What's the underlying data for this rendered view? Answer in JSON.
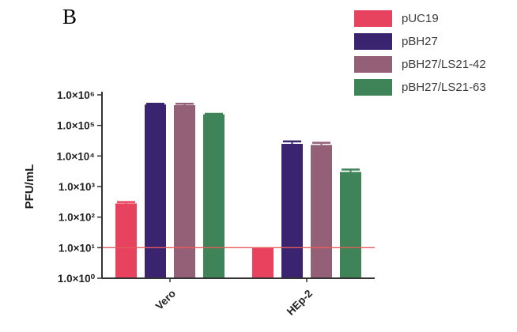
{
  "panel_label": "B",
  "colors": {
    "pUC19": "#e8435e",
    "pBH27": "#3a2470",
    "pBH27/LS21-42": "#946078",
    "pBH27/LS21-63": "#3e8458",
    "reference_line": "#e65a5a",
    "axis": "#333333"
  },
  "chart_data": {
    "type": "bar",
    "scale": "log10",
    "ylabel": "PFU/mL",
    "xlabel": "",
    "ylim": [
      1,
      1000000
    ],
    "yticks": [
      1,
      10,
      100,
      1000,
      10000,
      100000,
      1000000
    ],
    "ytick_labels": [
      "1.0×10⁰",
      "1.0×10¹",
      "1.0×10²",
      "1.0×10³",
      "1.0×10⁴",
      "1.0×10⁵",
      "1.0×10⁶"
    ],
    "categories": [
      "Vero",
      "HEp-2"
    ],
    "series": [
      {
        "name": "pUC19",
        "values": [
          280,
          10
        ],
        "errors": [
          30,
          0
        ]
      },
      {
        "name": "pBH27",
        "values": [
          480000,
          25000
        ],
        "errors": [
          30000,
          5000
        ]
      },
      {
        "name": "pBH27/LS21-42",
        "values": [
          460000,
          23000
        ],
        "errors": [
          50000,
          4000
        ]
      },
      {
        "name": "pBH27/LS21-63",
        "values": [
          230000,
          3000
        ],
        "errors": [
          10000,
          600
        ]
      }
    ],
    "reference_line": 10,
    "legend_position": "top-right",
    "grid": false
  }
}
